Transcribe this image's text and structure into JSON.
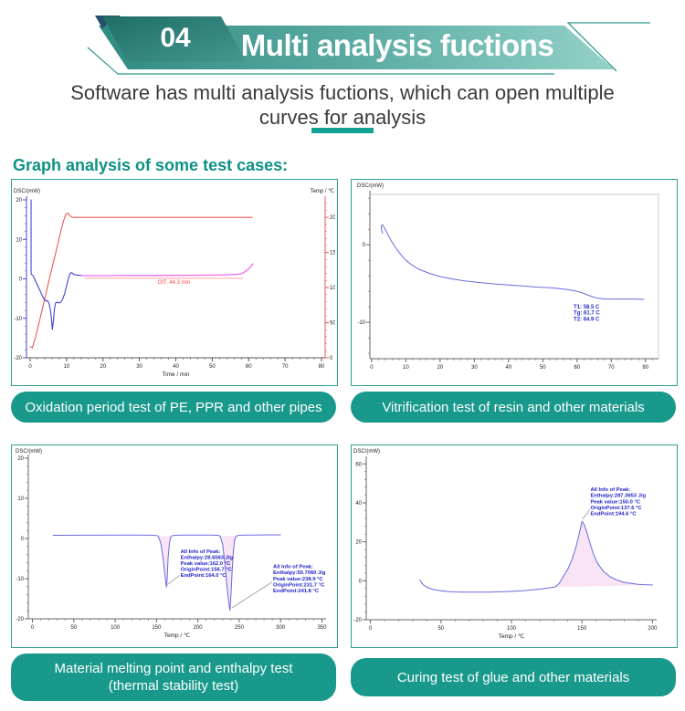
{
  "banner": {
    "number": "04",
    "title": "Multi analysis fuctions"
  },
  "subtitle": {
    "line1": "Software has multi analysis fuctions, which can open multiple",
    "line2": "curves for analysis"
  },
  "section_heading": "Graph analysis of some test cases:",
  "colors": {
    "teal": "#18998b",
    "heading": "#0e9184",
    "panel_border": "#2f9e90",
    "underline": "#12a295",
    "curve_blue": "#4040d8",
    "curve_red": "#f05555",
    "curve_magenta": "#ee6bee",
    "annotation_blue": "#2222cc",
    "peak_fill_pink": "#f5d9f0"
  },
  "panels": [
    {
      "caption": "Oxidation period test of PE, PPR and other pipes"
    },
    {
      "caption": "Vitrification test of resin and other materials"
    },
    {
      "caption": "Material melting point and enthalpy test",
      "caption_line2": "(thermal stability test)"
    },
    {
      "caption": "Curing test of glue and other materials"
    }
  ],
  "chart_data": [
    {
      "name": "oxidation-oit",
      "type": "line",
      "ylabel": "DSC/(mW)",
      "y2label": "Temp / ℃",
      "xlabel": "Time / min",
      "xlim": [
        -1,
        81
      ],
      "xticks": [
        0,
        10,
        20,
        30,
        40,
        50,
        60,
        70,
        80
      ],
      "xminor": 2,
      "ylim": [
        -20,
        20
      ],
      "yticks": [
        -20,
        -10,
        0,
        10,
        20
      ],
      "yminor": 2,
      "y2lim": [
        0,
        225
      ],
      "y2ticks": [
        0,
        50,
        100,
        150,
        200
      ],
      "y2minor": 10,
      "layout": {
        "ml": 16,
        "mr": 11,
        "mt": 22,
        "mb": 28
      },
      "axes": {
        "left": "#4646d2",
        "right": "#f05555",
        "bottom": "#555555"
      },
      "series": [
        {
          "name": "temperature",
          "axis": "right",
          "color": "#f05555",
          "width": 1.1,
          "x": [
            0,
            0.6,
            1.5,
            3,
            4.5,
            6,
            7.5,
            8.8,
            9.4,
            9.9,
            10.4,
            11,
            11.8,
            13,
            20,
            30,
            40,
            50,
            58,
            61
          ],
          "y": [
            16,
            14,
            30,
            62,
            95,
            128,
            160,
            188,
            199,
            205,
            206,
            202,
            200,
            200,
            200,
            200,
            200,
            200,
            200,
            200
          ]
        },
        {
          "name": "dsc",
          "axis": "left",
          "color": "#4040d8",
          "width": 1.1,
          "x": [
            0.25,
            0.25,
            0.8,
            1.5,
            2.2,
            2.9,
            3.5,
            4,
            4.4,
            4.8,
            5.2,
            5.6,
            5.9,
            6.1,
            6.4,
            6.7,
            7,
            7.4,
            7.9,
            8.4,
            8.9,
            9.4,
            9.9,
            10.4,
            10.9,
            11.4,
            12,
            13,
            14
          ],
          "y": [
            20,
            1.2,
            0.8,
            -0.6,
            -2,
            -3.4,
            -4.6,
            -5.3,
            -5.6,
            -5.5,
            -6.3,
            -8,
            -10.5,
            -12.8,
            -10.5,
            -7.5,
            -6.1,
            -5.9,
            -6.1,
            -5.9,
            -5.2,
            -3.9,
            -2.2,
            -0.3,
            1.3,
            1.6,
            1.1,
            0.95,
            0.9
          ]
        },
        {
          "name": "dsc-isotherm",
          "axis": "left",
          "color": "#ee6bee",
          "width": 1.3,
          "x": [
            14,
            20,
            28,
            36,
            44,
            50,
            54,
            56.5,
            58,
            59,
            60,
            60.7,
            61.2
          ],
          "y": [
            0.8,
            0.8,
            0.85,
            0.85,
            0.9,
            0.95,
            1,
            1.1,
            1.3,
            1.8,
            2.5,
            3.2,
            3.8
          ]
        }
      ],
      "lines": [
        {
          "axis": "left",
          "x1": 15,
          "y1": 0.15,
          "x2": 58.5,
          "y2": 0.15,
          "color": "#ffaaaa",
          "width": 1
        }
      ],
      "annotations": [
        {
          "axis": "left",
          "x": 35,
          "y": -1.3,
          "color": "#ff4444",
          "size": 6,
          "bold": false,
          "lines": [
            "OIT:   44.3 min"
          ]
        }
      ]
    },
    {
      "name": "vitrification",
      "type": "line",
      "ylabel": "DSC/(mW)",
      "xlabel": "",
      "xlim": [
        -0.5,
        83.8
      ],
      "xticks": [
        0,
        10,
        20,
        30,
        40,
        50,
        60,
        70,
        80
      ],
      "xminor": 2,
      "ylim": [
        -14.7,
        6.5
      ],
      "yticks": [
        0,
        -10
      ],
      "yminor": 2,
      "layout": {
        "ml": 20,
        "mr": 18,
        "mt": 16,
        "mb": 27
      },
      "axes": {
        "left": "#666666",
        "bottom": "#666666"
      },
      "box": "#cccccc",
      "series": [
        {
          "name": "dsc",
          "axis": "left",
          "color": "#6a6ae0",
          "width": 1,
          "x": [
            3.2,
            2.9,
            2.85,
            3.1,
            3.6,
            4.2,
            5,
            6,
            7.2,
            8.6,
            10,
            12,
            14,
            17,
            20,
            24,
            28,
            32,
            36,
            40,
            44,
            48,
            52,
            55,
            57.5,
            59.5,
            61.5,
            63,
            64.5,
            66,
            68,
            72,
            76,
            79.5
          ],
          "y": [
            1.5,
            2,
            2.45,
            2.6,
            2.3,
            1.8,
            1.1,
            0.3,
            -0.5,
            -1.3,
            -2,
            -2.7,
            -3.2,
            -3.7,
            -4.1,
            -4.45,
            -4.7,
            -4.9,
            -5.05,
            -5.2,
            -5.3,
            -5.45,
            -5.55,
            -5.65,
            -5.8,
            -5.95,
            -6.2,
            -6.45,
            -6.7,
            -6.9,
            -7,
            -7,
            -7,
            -7.05
          ]
        }
      ],
      "annotations": [
        {
          "axis": "left",
          "x": 59,
          "y": -8.2,
          "color": "#2a2ad0",
          "size": 6,
          "bold": true,
          "lines": [
            "T1:  58.5 C",
            "Tg:  61.7 C",
            "T2:  64.9 C"
          ]
        }
      ]
    },
    {
      "name": "melting-enthalpy",
      "type": "line",
      "ylabel": "DSC/(mW)",
      "xlabel": "Temp / ℃",
      "xlim": [
        -5,
        355
      ],
      "xticks": [
        0,
        50,
        100,
        150,
        200,
        250,
        300,
        350
      ],
      "xminor": 10,
      "ylim": [
        -20,
        20
      ],
      "yticks": [
        -20,
        -10,
        0,
        10,
        20
      ],
      "yminor": 2,
      "layout": {
        "ml": 18,
        "mr": 10,
        "mt": 14,
        "mb": 29
      },
      "axes": {
        "left": "#666666",
        "bottom": "#666666"
      },
      "fills": [
        {
          "color": "#f5d9f0",
          "opacity": 0.7,
          "points": [
            [
              152,
              0.6
            ],
            [
              155,
              -1
            ],
            [
              157,
              -3.5
            ],
            [
              159,
              -7
            ],
            [
              161,
              -10.5
            ],
            [
              162,
              -12.1
            ],
            [
              163,
              -10
            ],
            [
              164,
              -5
            ],
            [
              165.5,
              -1.5
            ],
            [
              167,
              0.3
            ],
            [
              168,
              0.6
            ]
          ]
        },
        {
          "color": "#f5d9f0",
          "opacity": 0.7,
          "points": [
            [
              227,
              0.6
            ],
            [
              230,
              -1.5
            ],
            [
              232,
              -5
            ],
            [
              234,
              -9
            ],
            [
              236,
              -13.5
            ],
            [
              238,
              -17
            ],
            [
              238.8,
              -17.9
            ],
            [
              240,
              -14
            ],
            [
              241.5,
              -8
            ],
            [
              243,
              -3
            ],
            [
              244.5,
              -0.5
            ],
            [
              246,
              0.5
            ],
            [
              247,
              0.7
            ]
          ]
        }
      ],
      "series": [
        {
          "name": "dsc",
          "axis": "left",
          "color": "#6a6ae0",
          "width": 1,
          "x": [
            25,
            60,
            100,
            130,
            145,
            150,
            152,
            155,
            157,
            159,
            161,
            162,
            163,
            164,
            165.5,
            167,
            169,
            175,
            185,
            200,
            215,
            224,
            227,
            230,
            232,
            234,
            236,
            238,
            238.8,
            240,
            241.5,
            243,
            244.5,
            246,
            248,
            252,
            260,
            275,
            290,
            300
          ],
          "y": [
            0.8,
            0.82,
            0.85,
            0.85,
            0.82,
            0.75,
            0.6,
            -1,
            -3.5,
            -7,
            -10.5,
            -12.1,
            -10,
            -5,
            -1.5,
            0.3,
            0.7,
            0.82,
            0.85,
            0.85,
            0.85,
            0.8,
            0.6,
            -1.5,
            -5,
            -9,
            -13.5,
            -17,
            -17.9,
            -14,
            -8,
            -3,
            -0.5,
            0.5,
            0.75,
            0.82,
            0.85,
            0.88,
            0.9,
            0.9
          ]
        }
      ],
      "lines": [
        {
          "axis": "left",
          "x1": 163,
          "y1": -11.5,
          "x2": 178,
          "y2": -9.2,
          "color": "#888888",
          "width": 0.7
        },
        {
          "axis": "left",
          "x1": 241,
          "y1": -17.3,
          "x2": 290,
          "y2": -10.8,
          "color": "#888888",
          "width": 0.7
        }
      ],
      "annotations": [
        {
          "axis": "left",
          "x": 179,
          "y": -3.6,
          "color": "#2222cc",
          "size": 5.8,
          "bold": true,
          "lines": [
            "All Info of Peak:",
            "Enthalpy:28.6583 J/g",
            "Peak value:162.0 °C",
            "OriginPoint:156.7 °C",
            "EndPoint:164.0 °C"
          ]
        },
        {
          "axis": "left",
          "x": 291,
          "y": -7.4,
          "color": "#2222cc",
          "size": 5.8,
          "bold": true,
          "lines": [
            "All Info of Peak:",
            "Enthalpy:50.7060 J/g",
            "Peak value:238.9 °C",
            "OriginPoint:231.7 °C",
            "EndPoint:241.8 °C"
          ]
        }
      ]
    },
    {
      "name": "curing",
      "type": "line",
      "ylabel": "DSC/(mW)",
      "xlabel": "Temp / ℃",
      "xlim": [
        -3,
        203
      ],
      "xticks": [
        0,
        50,
        100,
        150,
        200
      ],
      "xminor": 10,
      "ylim": [
        -20,
        62
      ],
      "yticks": [
        -20,
        0,
        20,
        40,
        60
      ],
      "yminor": 4,
      "layout": {
        "ml": 16,
        "mr": 20,
        "mt": 16,
        "mb": 28
      },
      "axes": {
        "left": "#666666",
        "bottom": "#666666"
      },
      "fills": [
        {
          "color": "#f5d9f0",
          "opacity": 0.7,
          "points": [
            [
              131,
              -3.2
            ],
            [
              134,
              -1.2
            ],
            [
              137,
              2.5
            ],
            [
              140,
              6
            ],
            [
              143,
              11
            ],
            [
              146,
              18
            ],
            [
              148,
              24
            ],
            [
              150,
              30.5
            ],
            [
              151.5,
              29
            ],
            [
              153,
              26
            ],
            [
              155,
              21
            ],
            [
              158,
              14
            ],
            [
              161,
              9
            ],
            [
              165,
              5
            ],
            [
              170,
              2
            ],
            [
              175,
              0.3
            ],
            [
              180,
              -0.8
            ],
            [
              185,
              -1.4
            ],
            [
              190,
              -1.8
            ],
            [
              195,
              -2
            ],
            [
              200,
              -2.2
            ]
          ]
        }
      ],
      "series": [
        {
          "name": "dsc",
          "axis": "left",
          "color": "#6a6ae0",
          "width": 1,
          "x": [
            35,
            36.5,
            38,
            40,
            43,
            46,
            50,
            55,
            60,
            68,
            76,
            84,
            92,
            100,
            108,
            115,
            122,
            127,
            131,
            134,
            137,
            140,
            143,
            146,
            148,
            150,
            151.5,
            153,
            155,
            158,
            161,
            165,
            170,
            175,
            180,
            185,
            190,
            195,
            200
          ],
          "y": [
            0.5,
            -1.3,
            -2.4,
            -3.3,
            -4.1,
            -4.7,
            -5.1,
            -5.5,
            -5.7,
            -5.85,
            -5.85,
            -5.8,
            -5.65,
            -5.45,
            -5.1,
            -4.7,
            -4.1,
            -3.6,
            -3.2,
            -1.2,
            2.5,
            6,
            11,
            18,
            24,
            30.5,
            29,
            26,
            21,
            14,
            9,
            5,
            2,
            0.3,
            -0.8,
            -1.4,
            -1.8,
            -2,
            -2.2
          ]
        }
      ],
      "lines": [
        {
          "axis": "left",
          "x1": 150.3,
          "y1": 31.5,
          "x2": 155.5,
          "y2": 36.5,
          "color": "#888888",
          "width": 0.7
        }
      ],
      "annotations": [
        {
          "axis": "left",
          "x": 156,
          "y": 46,
          "color": "#2222cc",
          "size": 5.8,
          "bold": true,
          "lines": [
            "All Info of Peak:",
            "Enthalpy:287.3653 J/g",
            "Peak value:150.0 °C",
            "OriginPoint:137.6 °C",
            "EndPoint:194.6 °C"
          ]
        }
      ]
    }
  ]
}
